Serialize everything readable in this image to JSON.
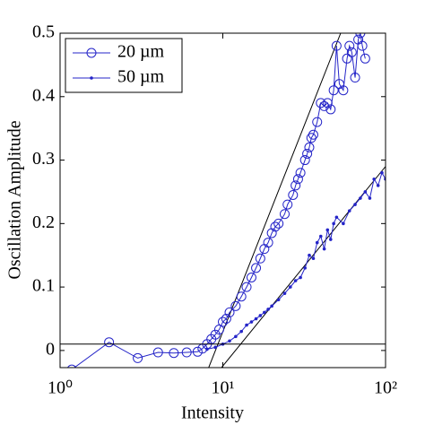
{
  "chart_data": {
    "type": "line",
    "x_label": "Intensity",
    "y_label": "Oscillation Amplitude",
    "log_x": true,
    "xlim": [
      1,
      100
    ],
    "xticks": [
      {
        "value": 1,
        "label": "10⁰"
      },
      {
        "value": 10,
        "label": "10¹"
      },
      {
        "value": 100,
        "label": "10²"
      }
    ],
    "ylim": [
      -0.027,
      0.5
    ],
    "yticks": [
      0,
      0.1,
      0.2,
      0.3,
      0.4,
      0.5
    ],
    "legend": "upper left",
    "hline": 0.01,
    "fit_lines": [
      {
        "x": [
          8.1,
          53
        ],
        "y": [
          -0.03,
          0.5
        ]
      },
      {
        "x": [
          9.6,
          100
        ],
        "y": [
          -0.03,
          0.29
        ]
      }
    ],
    "series": [
      {
        "name": "20 µm",
        "color": "#2424c8",
        "marker": "circle",
        "x": [
          1.18,
          2,
          3,
          4,
          5,
          6,
          7,
          7.5,
          8,
          8.5,
          9,
          9.5,
          10,
          10.5,
          11,
          12,
          13,
          14,
          15,
          16,
          17,
          18,
          19,
          20,
          21,
          22,
          24,
          25,
          27,
          28,
          29,
          30,
          32,
          33,
          34,
          35,
          36,
          38,
          40,
          42,
          44,
          46,
          48,
          50,
          52,
          55,
          58,
          60,
          62,
          65,
          68,
          70,
          72,
          75
        ],
        "values": [
          -0.03,
          0.013,
          -0.012,
          -0.003,
          -0.004,
          -0.003,
          -0.002,
          0.003,
          0.01,
          0.018,
          0.025,
          0.033,
          0.045,
          0.05,
          0.06,
          0.07,
          0.085,
          0.1,
          0.115,
          0.13,
          0.145,
          0.16,
          0.17,
          0.185,
          0.195,
          0.2,
          0.215,
          0.23,
          0.245,
          0.26,
          0.27,
          0.28,
          0.3,
          0.31,
          0.32,
          0.335,
          0.34,
          0.36,
          0.39,
          0.385,
          0.39,
          0.38,
          0.41,
          0.48,
          0.42,
          0.41,
          0.46,
          0.48,
          0.47,
          0.43,
          0.49,
          0.5,
          0.48,
          0.46
        ]
      },
      {
        "name": "50 µm",
        "color": "#2424c8",
        "marker": "dot",
        "x": [
          8,
          9,
          10,
          11,
          12,
          13,
          14,
          15,
          16,
          17,
          18,
          19,
          20,
          22,
          24,
          26,
          28,
          30,
          32,
          34,
          36,
          38,
          40,
          42,
          44,
          46,
          48,
          50,
          55,
          60,
          65,
          70,
          75,
          80,
          85,
          90,
          95,
          100
        ],
        "values": [
          0.002,
          0.005,
          0.01,
          0.015,
          0.022,
          0.03,
          0.04,
          0.045,
          0.05,
          0.055,
          0.06,
          0.065,
          0.07,
          0.08,
          0.09,
          0.1,
          0.11,
          0.115,
          0.13,
          0.15,
          0.145,
          0.17,
          0.18,
          0.16,
          0.19,
          0.175,
          0.2,
          0.21,
          0.2,
          0.22,
          0.23,
          0.24,
          0.25,
          0.24,
          0.27,
          0.26,
          0.28,
          0.27
        ]
      }
    ]
  }
}
